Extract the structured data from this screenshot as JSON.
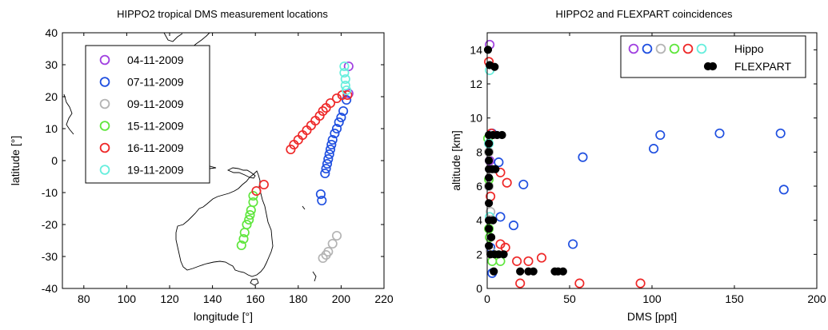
{
  "colors": {
    "04-11-2009": "#a040e0",
    "07-11-2009": "#1f4fe0",
    "09-11-2009": "#b4b4b4",
    "15-11-2009": "#5ee63c",
    "16-11-2009": "#ee2828",
    "19-11-2009": "#66eedd",
    "flexpart": "#000000"
  },
  "chart_data": [
    {
      "type": "scatter",
      "title": "HIPPO2 tropical DMS measurement locations",
      "xlabel": "longitude [°]",
      "ylabel": "latitude [°]",
      "xlim": [
        70,
        220
      ],
      "ylim": [
        -40,
        40
      ],
      "xticks": [
        80,
        100,
        120,
        140,
        160,
        180,
        200,
        220
      ],
      "yticks": [
        -40,
        -30,
        -20,
        -10,
        0,
        10,
        20,
        30,
        40
      ],
      "grid": false,
      "legend_position": "top-left",
      "background": "coastline map",
      "series": [
        {
          "name": "04-11-2009",
          "marker": "open-circle",
          "points": [
            [
              203.5,
              29.5
            ],
            [
              203.5,
              21
            ]
          ]
        },
        {
          "name": "07-11-2009",
          "marker": "open-circle",
          "points": [
            [
              190.5,
              -10.5
            ],
            [
              191,
              -12.5
            ],
            [
              192.5,
              -4
            ],
            [
              193,
              -2.5
            ],
            [
              193.5,
              -1
            ],
            [
              194,
              0.5
            ],
            [
              194.5,
              2
            ],
            [
              195,
              3.5
            ],
            [
              195.5,
              5
            ],
            [
              196,
              6.5
            ],
            [
              197,
              8.5
            ],
            [
              198,
              10
            ],
            [
              199,
              12
            ],
            [
              200,
              13.5
            ],
            [
              201,
              15.5
            ],
            [
              202.5,
              19
            ]
          ]
        },
        {
          "name": "09-11-2009",
          "marker": "open-circle",
          "points": [
            [
              191.5,
              -30.5
            ],
            [
              193,
              -29.5
            ],
            [
              194,
              -28.5
            ],
            [
              196,
              -26
            ],
            [
              198,
              -23.5
            ]
          ]
        },
        {
          "name": "15-11-2009",
          "marker": "open-circle",
          "points": [
            [
              153.5,
              -26.5
            ],
            [
              154.5,
              -24.5
            ],
            [
              155,
              -22.5
            ],
            [
              156,
              -20
            ],
            [
              157,
              -18.5
            ],
            [
              157.5,
              -17
            ],
            [
              158,
              -15.5
            ],
            [
              159,
              -13
            ],
            [
              159,
              -11
            ]
          ]
        },
        {
          "name": "16-11-2009",
          "marker": "open-circle",
          "points": [
            [
              160.5,
              -9.5
            ],
            [
              164,
              -7.5
            ],
            [
              176.5,
              3.5
            ],
            [
              178,
              5
            ],
            [
              180,
              6.5
            ],
            [
              182,
              8
            ],
            [
              184,
              9.5
            ],
            [
              186,
              11
            ],
            [
              188,
              12.5
            ],
            [
              190,
              14
            ],
            [
              191.5,
              15.5
            ],
            [
              193,
              16.5
            ],
            [
              195,
              18
            ],
            [
              198,
              19.5
            ],
            [
              200.5,
              20.5
            ],
            [
              203,
              20.5
            ]
          ]
        },
        {
          "name": "19-11-2009",
          "marker": "open-circle",
          "points": [
            [
              201.5,
              29.5
            ],
            [
              201.5,
              27.5
            ],
            [
              202,
              25.5
            ],
            [
              202,
              23.5
            ],
            [
              202.5,
              22
            ]
          ]
        }
      ]
    },
    {
      "type": "scatter",
      "title": "HIPPO2 and FLEXPART coincidences",
      "xlabel": "DMS [ppt]",
      "ylabel": "altitude [km]",
      "xlim": [
        0,
        200
      ],
      "ylim": [
        0,
        15
      ],
      "xticks": [
        0,
        50,
        100,
        150,
        200
      ],
      "yticks": [
        0,
        2,
        4,
        6,
        8,
        10,
        12,
        14
      ],
      "grid": false,
      "legend_position": "top-right",
      "legend": [
        "Hippo",
        "FLEXPART"
      ],
      "series": [
        {
          "name": "Hippo 04-11-2009",
          "marker": "open-circle",
          "color_key": "04-11-2009",
          "points": [
            [
              1.5,
              14.3
            ],
            [
              1.5,
              7.5
            ]
          ]
        },
        {
          "name": "Hippo 07-11-2009",
          "marker": "open-circle",
          "color_key": "07-11-2009",
          "points": [
            [
              3,
              9.1
            ],
            [
              7,
              7.4
            ],
            [
              58,
              7.7
            ],
            [
              101,
              8.2
            ],
            [
              105,
              9.0
            ],
            [
              141,
              9.1
            ],
            [
              178,
              9.1
            ],
            [
              180,
              5.8
            ],
            [
              22,
              6.1
            ],
            [
              8,
              4.2
            ],
            [
              16,
              3.7
            ],
            [
              52,
              2.6
            ],
            [
              2,
              2.4
            ],
            [
              3,
              0.9
            ]
          ]
        },
        {
          "name": "Hippo 09-11-2009",
          "marker": "open-circle",
          "color_key": "09-11-2009",
          "points": [
            [
              1,
              8.0
            ],
            [
              1,
              6.0
            ],
            [
              2,
              4.5
            ],
            [
              2,
              2.2
            ]
          ]
        },
        {
          "name": "Hippo 15-11-2009",
          "marker": "open-circle",
          "color_key": "15-11-2009",
          "points": [
            [
              0.5,
              8.8
            ],
            [
              1,
              6.4
            ],
            [
              1,
              3.5
            ],
            [
              1.5,
              3.0
            ],
            [
              3,
              1.6
            ],
            [
              8,
              1.6
            ]
          ]
        },
        {
          "name": "Hippo 16-11-2009",
          "marker": "open-circle",
          "color_key": "16-11-2009",
          "points": [
            [
              1,
              13.3
            ],
            [
              2.5,
              9.1
            ],
            [
              8,
              6.8
            ],
            [
              12,
              6.2
            ],
            [
              2,
              5.4
            ],
            [
              8,
              2.6
            ],
            [
              11,
              2.4
            ],
            [
              18,
              1.6
            ],
            [
              25,
              1.6
            ],
            [
              33,
              1.8
            ],
            [
              20,
              0.3
            ],
            [
              56,
              0.3
            ],
            [
              93,
              0.3
            ]
          ]
        },
        {
          "name": "Hippo 19-11-2009",
          "marker": "open-circle",
          "color_key": "19-11-2009",
          "points": [
            [
              1.5,
              12.8
            ],
            [
              1,
              8.5
            ],
            [
              1.5,
              4.2
            ]
          ]
        },
        {
          "name": "FLEXPART",
          "marker": "filled-circle",
          "color_key": "flexpart",
          "points": [
            [
              0.5,
              14.0
            ],
            [
              1.5,
              13.1
            ],
            [
              4.5,
              13.0
            ],
            [
              1,
              9.0
            ],
            [
              3.5,
              9.0
            ],
            [
              6,
              9.0
            ],
            [
              9,
              9.0
            ],
            [
              1,
              8.5
            ],
            [
              1,
              8.0
            ],
            [
              1,
              7.5
            ],
            [
              1,
              7.0
            ],
            [
              3,
              7.0
            ],
            [
              5,
              7.0
            ],
            [
              1,
              6.5
            ],
            [
              1,
              6.0
            ],
            [
              1,
              5.0
            ],
            [
              1,
              4.0
            ],
            [
              3.5,
              4.0
            ],
            [
              1,
              3.5
            ],
            [
              2.5,
              3.0
            ],
            [
              1,
              2.5
            ],
            [
              2,
              2.0
            ],
            [
              4.5,
              2.0
            ],
            [
              7,
              2.0
            ],
            [
              10,
              2.0
            ],
            [
              4,
              1.0
            ],
            [
              20,
              1.0
            ],
            [
              25,
              1.0
            ],
            [
              28,
              1.0
            ],
            [
              41,
              1.0
            ],
            [
              43,
              1.0
            ],
            [
              46,
              1.0
            ]
          ]
        }
      ]
    }
  ],
  "legend_left": [
    {
      "label": "04-11-2009",
      "color_key": "04-11-2009"
    },
    {
      "label": "07-11-2009",
      "color_key": "07-11-2009"
    },
    {
      "label": "09-11-2009",
      "color_key": "09-11-2009"
    },
    {
      "label": "15-11-2009",
      "color_key": "15-11-2009"
    },
    {
      "label": "16-11-2009",
      "color_key": "16-11-2009"
    },
    {
      "label": "19-11-2009",
      "color_key": "19-11-2009"
    }
  ],
  "legend_right": {
    "hippo_label": "Hippo",
    "hippo_color_keys": [
      "04-11-2009",
      "07-11-2009",
      "09-11-2009",
      "15-11-2009",
      "16-11-2009",
      "19-11-2009"
    ],
    "flexpart_label": "FLEXPART"
  }
}
